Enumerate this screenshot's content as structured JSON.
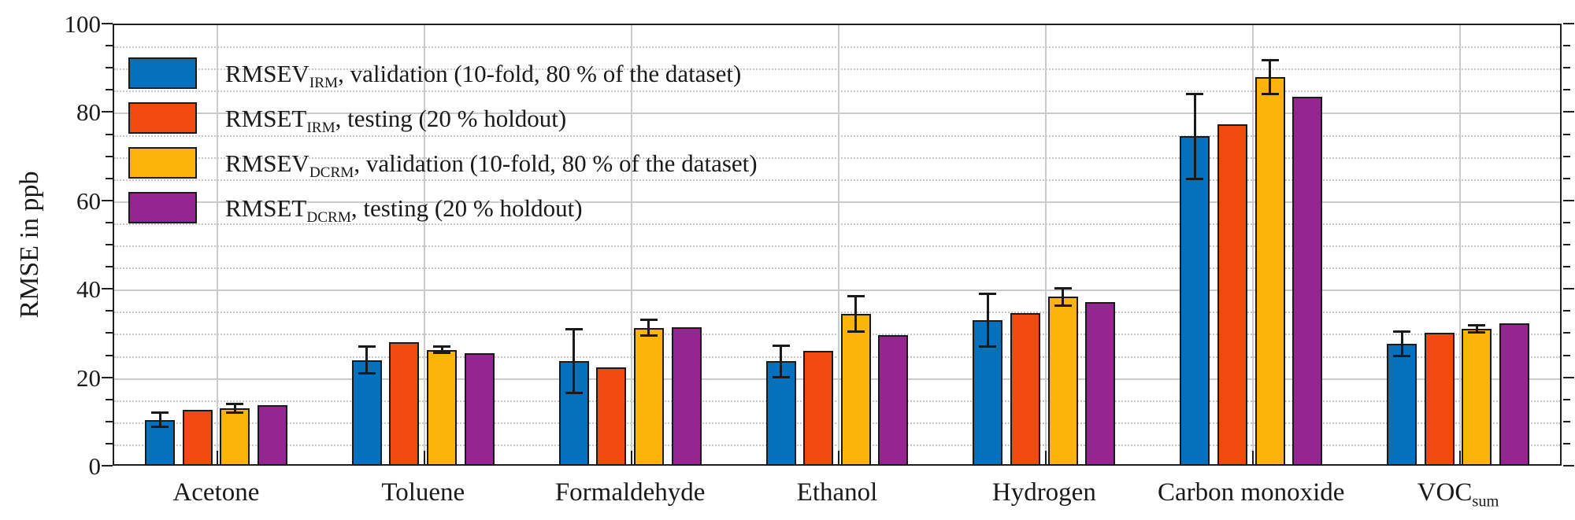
{
  "chart_data": {
    "type": "bar",
    "title": "",
    "xlabel": "",
    "ylabel": "RMSE in ppb",
    "ylim": [
      0,
      100
    ],
    "ytick_step": 20,
    "yminor_step": 5,
    "yticks": [
      0,
      20,
      40,
      60,
      80,
      100
    ],
    "grid": {
      "major": "on",
      "minor": "on",
      "minor_style": "dotted"
    },
    "legend_position": "top-left-inside",
    "categories": [
      {
        "label": "Acetone",
        "sub": ""
      },
      {
        "label": "Toluene",
        "sub": ""
      },
      {
        "label": "Formaldehyde",
        "sub": ""
      },
      {
        "label": "Ethanol",
        "sub": ""
      },
      {
        "label": "Hydrogen",
        "sub": ""
      },
      {
        "label": "Carbon monoxide",
        "sub": ""
      },
      {
        "label": "VOC",
        "sub": "sum"
      }
    ],
    "series": [
      {
        "name_prefix": "RMSEV",
        "name_sub": "IRM",
        "name_suffix": ", validation (10-fold, 80 % of the dataset)",
        "color": "#0571BD",
        "values": [
          10.4,
          23.9,
          23.7,
          23.6,
          32.9,
          74.5,
          27.6
        ],
        "errors": [
          1.7,
          3.1,
          7.3,
          3.7,
          6.0,
          9.7,
          2.9
        ]
      },
      {
        "name_prefix": "RMSET",
        "name_sub": "IRM",
        "name_suffix": ", testing (20 % holdout)",
        "color": "#F04A10",
        "values": [
          12.7,
          27.9,
          22.3,
          25.9,
          34.6,
          77.3,
          30.1
        ],
        "errors": null
      },
      {
        "name_prefix": "RMSEV",
        "name_sub": "DCRM",
        "name_suffix": ", validation (10-fold, 80 % of the dataset)",
        "color": "#FCB40A",
        "values": [
          13.0,
          26.2,
          31.2,
          34.3,
          38.2,
          87.9,
          30.9
        ],
        "errors": [
          1.0,
          0.8,
          1.9,
          4.1,
          2.0,
          3.9,
          0.9
        ]
      },
      {
        "name_prefix": "RMSET",
        "name_sub": "DCRM",
        "name_suffix": ", testing (20 % holdout)",
        "color": "#93278F",
        "values": [
          13.7,
          25.4,
          31.4,
          29.5,
          37.0,
          83.4,
          32.2
        ],
        "errors": null
      }
    ],
    "colors": {
      "axis": "#1F1F1F",
      "grid_major": "#CBCBCB",
      "grid_minor": "#C6C6C6",
      "background": "#FFFFFF"
    }
  }
}
